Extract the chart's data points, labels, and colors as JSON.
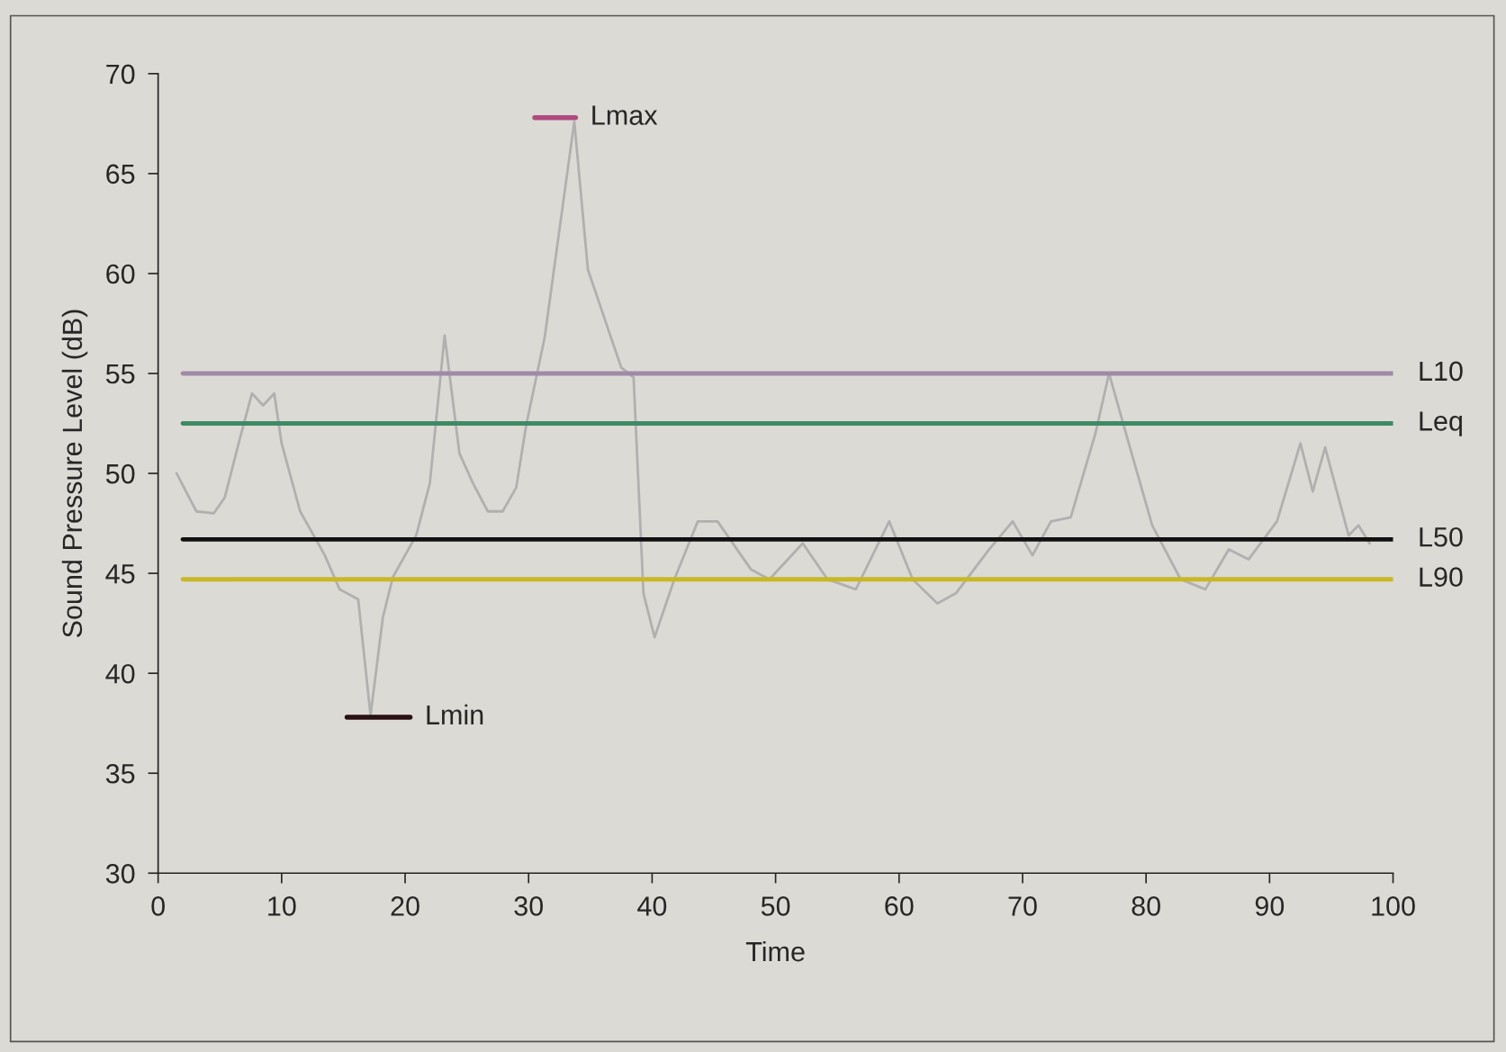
{
  "chart_data": {
    "type": "line",
    "xlabel": "Time",
    "ylabel": "Sound Pressure Level (dB)",
    "xlim": [
      0,
      100
    ],
    "xticks": [
      0,
      10,
      20,
      30,
      40,
      50,
      60,
      70,
      80,
      90,
      100
    ],
    "ylim": [
      30,
      70
    ],
    "yticks": [
      30,
      35,
      40,
      45,
      50,
      55,
      60,
      65,
      70
    ],
    "grid": false,
    "legend": false,
    "series": [
      {
        "color": "#b0b0b0",
        "x": [
          1.5,
          3.1,
          4.5,
          5.4,
          6.6,
          7.6,
          8.5,
          9.4,
          10,
          11.5,
          13.5,
          14.7,
          16.2,
          17.2,
          18.2,
          19,
          20.9,
          22,
          23.2,
          24.4,
          25.5,
          26.7,
          27.9,
          29,
          29.8,
          31.3,
          33.7,
          34.8,
          37.5,
          38.5,
          39.3,
          40.2,
          41.8,
          43.7,
          45.3,
          48,
          49.5,
          52.2,
          54.2,
          56.5,
          59.2,
          61.1,
          63.1,
          64.6,
          67.3,
          69.2,
          70.8,
          72.3,
          73.9,
          75.9,
          77,
          78.6,
          80.5,
          82.8,
          84.8,
          86.7,
          88.3,
          90.6,
          92.5,
          93.5,
          94.5,
          96.4,
          97.2,
          98.1
        ],
        "values": [
          50.0,
          48.1,
          48,
          48.8,
          51.7,
          54,
          53.4,
          54,
          51.5,
          48.1,
          45.9,
          44.2,
          43.7,
          37.9,
          42.8,
          44.8,
          46.9,
          49.5,
          56.9,
          51,
          49.5,
          48.1,
          48.1,
          49.3,
          52.4,
          56.8,
          67.6,
          60.2,
          55.3,
          54.8,
          44,
          41.8,
          44.7,
          47.6,
          47.6,
          45.2,
          44.7,
          46.5,
          44.7,
          44.2,
          47.6,
          44.7,
          43.5,
          44,
          46.2,
          47.6,
          45.9,
          47.6,
          47.8,
          52,
          55,
          51.5,
          47.4,
          44.7,
          44.2,
          46.2,
          45.7,
          47.6,
          51.5,
          49.1,
          51.3,
          46.9,
          47.4,
          46.5
        ]
      },
      {
        "name": "Lmax",
        "color": "#b04a80",
        "x": [
          30.5,
          33.8
        ],
        "values": [
          67.8,
          67.8
        ]
      },
      {
        "name": "Lmin",
        "color": "#2a1010",
        "x": [
          15.3,
          20.4
        ],
        "values": [
          37.8,
          37.8
        ]
      }
    ],
    "ref_lines": [
      {
        "axis": "y",
        "value": 55,
        "label": "L10",
        "color": "#a08aa8"
      },
      {
        "axis": "y",
        "value": 52.5,
        "label": "Leq",
        "color": "#3e8a66"
      },
      {
        "axis": "y",
        "value": 46.7,
        "label": "L50",
        "color": "#111111"
      },
      {
        "axis": "y",
        "value": 44.7,
        "label": "L90",
        "color": "#c8b828"
      }
    ]
  }
}
